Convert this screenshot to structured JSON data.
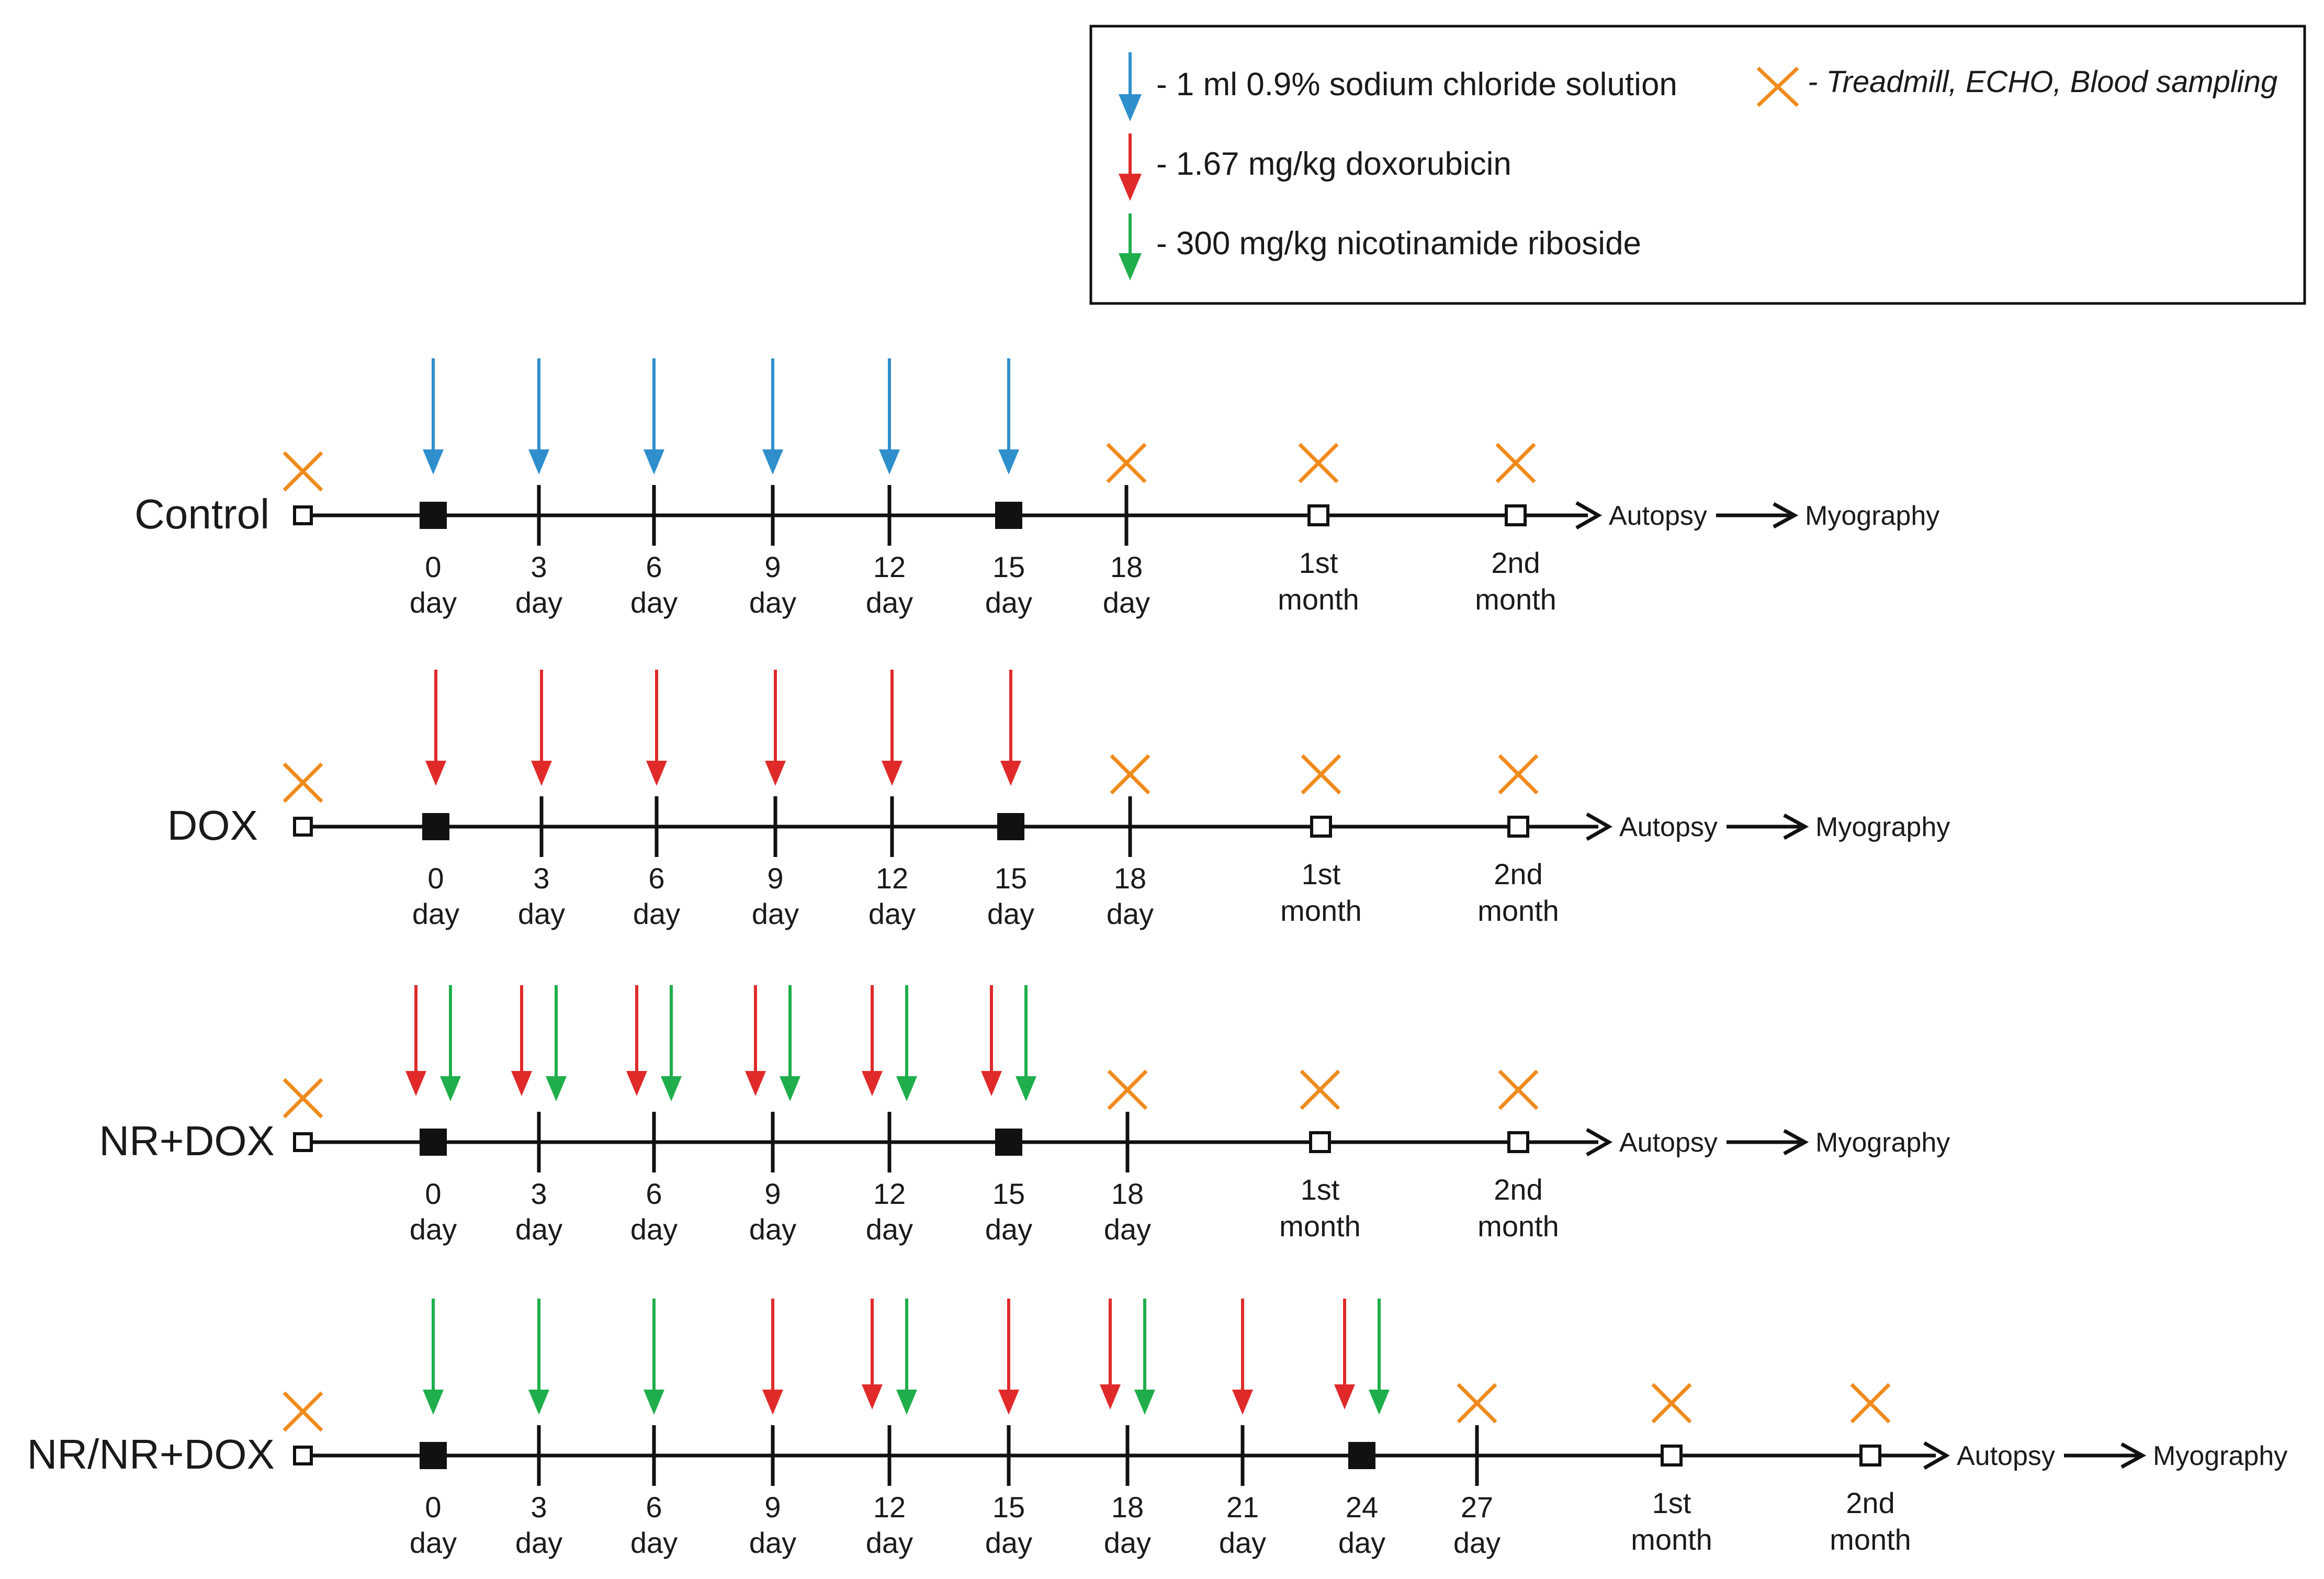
{
  "colors": {
    "saline": "#2f8fcc",
    "dox": "#e02a2a",
    "nr": "#1fae4b",
    "measure": "#f08a1c",
    "line": "#111111"
  },
  "legend": {
    "saline": "- 1 ml 0.9% sodium chloride solution",
    "dox": "- 1.67 mg/kg doxorubicin",
    "nr": "- 300 mg/kg nicotinamide riboside",
    "measure": "- Treadmill, ECHO, Blood sampling"
  },
  "timelines": [
    {
      "group": "Control",
      "ticks": [
        {
          "num": "0",
          "unit": "day",
          "mark": "square",
          "arrows": [
            "saline"
          ]
        },
        {
          "num": "3",
          "unit": "day",
          "mark": "tick",
          "arrows": [
            "saline"
          ]
        },
        {
          "num": "6",
          "unit": "day",
          "mark": "tick",
          "arrows": [
            "saline"
          ]
        },
        {
          "num": "9",
          "unit": "day",
          "mark": "tick",
          "arrows": [
            "saline"
          ]
        },
        {
          "num": "12",
          "unit": "day",
          "mark": "tick",
          "arrows": [
            "saline"
          ]
        },
        {
          "num": "15",
          "unit": "day",
          "mark": "square",
          "arrows": [
            "saline"
          ]
        },
        {
          "num": "18",
          "unit": "day",
          "mark": "tick",
          "arrows": [],
          "cross": true
        },
        {
          "num": "1st",
          "unit": "month",
          "mark": "open",
          "arrows": [],
          "cross": true
        },
        {
          "num": "2nd",
          "unit": "month",
          "mark": "open",
          "arrows": [],
          "cross": true
        }
      ],
      "end1": "Autopsy",
      "end2": "Myography"
    },
    {
      "group": "DOX",
      "ticks": [
        {
          "num": "0",
          "unit": "day",
          "mark": "square",
          "arrows": [
            "dox"
          ]
        },
        {
          "num": "3",
          "unit": "day",
          "mark": "tick",
          "arrows": [
            "dox"
          ]
        },
        {
          "num": "6",
          "unit": "day",
          "mark": "tick",
          "arrows": [
            "dox"
          ]
        },
        {
          "num": "9",
          "unit": "day",
          "mark": "tick",
          "arrows": [
            "dox"
          ]
        },
        {
          "num": "12",
          "unit": "day",
          "mark": "tick",
          "arrows": [
            "dox"
          ]
        },
        {
          "num": "15",
          "unit": "day",
          "mark": "square",
          "arrows": [
            "dox"
          ]
        },
        {
          "num": "18",
          "unit": "day",
          "mark": "tick",
          "arrows": [],
          "cross": true
        },
        {
          "num": "1st",
          "unit": "month",
          "mark": "open",
          "arrows": [],
          "cross": true
        },
        {
          "num": "2nd",
          "unit": "month",
          "mark": "open",
          "arrows": [],
          "cross": true
        }
      ],
      "end1": "Autopsy",
      "end2": "Myography"
    },
    {
      "group": "NR+DOX",
      "ticks": [
        {
          "num": "0",
          "unit": "day",
          "mark": "square",
          "arrows": [
            "dox",
            "nr"
          ]
        },
        {
          "num": "3",
          "unit": "day",
          "mark": "tick",
          "arrows": [
            "dox",
            "nr"
          ]
        },
        {
          "num": "6",
          "unit": "day",
          "mark": "tick",
          "arrows": [
            "dox",
            "nr"
          ]
        },
        {
          "num": "9",
          "unit": "day",
          "mark": "tick",
          "arrows": [
            "dox",
            "nr"
          ]
        },
        {
          "num": "12",
          "unit": "day",
          "mark": "tick",
          "arrows": [
            "dox",
            "nr"
          ]
        },
        {
          "num": "15",
          "unit": "day",
          "mark": "square",
          "arrows": [
            "dox",
            "nr"
          ]
        },
        {
          "num": "18",
          "unit": "day",
          "mark": "tick",
          "arrows": [],
          "cross": true
        },
        {
          "num": "1st",
          "unit": "month",
          "mark": "open",
          "arrows": [],
          "cross": true
        },
        {
          "num": "2nd",
          "unit": "month",
          "mark": "open",
          "arrows": [],
          "cross": true
        }
      ],
      "end1": "Autopsy",
      "end2": "Myography"
    },
    {
      "group": "NR/NR+DOX",
      "ticks": [
        {
          "num": "0",
          "unit": "day",
          "mark": "square",
          "arrows": [
            "nr"
          ]
        },
        {
          "num": "3",
          "unit": "day",
          "mark": "tick",
          "arrows": [
            "nr"
          ]
        },
        {
          "num": "6",
          "unit": "day",
          "mark": "tick",
          "arrows": [
            "nr"
          ]
        },
        {
          "num": "9",
          "unit": "day",
          "mark": "tick",
          "arrows": [
            "dox"
          ]
        },
        {
          "num": "12",
          "unit": "day",
          "mark": "tick",
          "arrows": [
            "dox",
            "nr"
          ]
        },
        {
          "num": "15",
          "unit": "day",
          "mark": "tick",
          "arrows": [
            "dox"
          ]
        },
        {
          "num": "18",
          "unit": "day",
          "mark": "tick",
          "arrows": [
            "dox",
            "nr"
          ]
        },
        {
          "num": "21",
          "unit": "day",
          "mark": "tick",
          "arrows": [
            "dox"
          ]
        },
        {
          "num": "24",
          "unit": "day",
          "mark": "square",
          "arrows": [
            "dox",
            "nr"
          ]
        },
        {
          "num": "27",
          "unit": "day",
          "mark": "tick",
          "arrows": [],
          "cross": true
        },
        {
          "num": "1st",
          "unit": "month",
          "mark": "open",
          "arrows": [],
          "cross": true
        },
        {
          "num": "2nd",
          "unit": "month",
          "mark": "open",
          "arrows": [],
          "cross": true
        }
      ],
      "end1": "Autopsy",
      "end2": "Myography"
    }
  ]
}
